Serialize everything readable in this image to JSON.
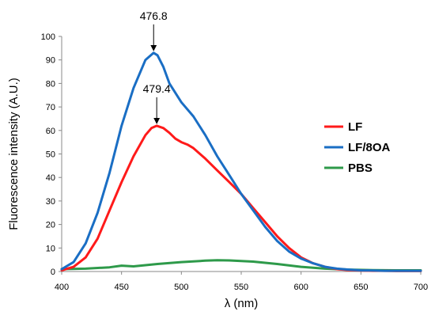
{
  "chart_data": {
    "type": "line",
    "xlabel": "λ (nm)",
    "ylabel": "Fluorescence intensity (A.U.)",
    "xlim": [
      400,
      700
    ],
    "ylim": [
      0,
      100
    ],
    "xticks": [
      400,
      450,
      500,
      550,
      600,
      650,
      700
    ],
    "yticks": [
      0,
      10,
      20,
      30,
      40,
      50,
      60,
      70,
      80,
      90,
      100
    ],
    "grid": false,
    "legend_position": "right",
    "series": [
      {
        "name": "LF",
        "color": "#ff1a1a",
        "x": [
          400,
          410,
          420,
          430,
          440,
          450,
          460,
          470,
          475,
          479.4,
          485,
          490,
          495,
          500,
          505,
          510,
          520,
          530,
          540,
          550,
          560,
          570,
          580,
          590,
          600,
          610,
          620,
          630,
          640,
          650,
          660,
          670,
          680,
          690,
          700
        ],
        "y": [
          0.5,
          2,
          6,
          14,
          26,
          38,
          49,
          58,
          61,
          62,
          61,
          59,
          56.5,
          55,
          54,
          52.5,
          48,
          43,
          38,
          33,
          27,
          21,
          15,
          10,
          6,
          3.5,
          2,
          1,
          0.6,
          0.4,
          0.3,
          0.3,
          0.2,
          0.2,
          0.2
        ]
      },
      {
        "name": "LF/8OA",
        "color": "#1a6ec4",
        "x": [
          400,
          410,
          420,
          430,
          440,
          450,
          460,
          470,
          476.8,
          480,
          485,
          490,
          500,
          510,
          520,
          530,
          540,
          550,
          560,
          570,
          580,
          590,
          600,
          610,
          620,
          630,
          640,
          650,
          660,
          670,
          680,
          690,
          700
        ],
        "y": [
          1,
          4,
          12,
          25,
          42,
          62,
          78,
          90,
          93,
          92,
          87,
          80,
          72,
          66,
          58,
          49,
          41,
          33,
          26,
          19,
          13,
          8.5,
          5.5,
          3.5,
          2,
          1.2,
          0.8,
          0.5,
          0.4,
          0.3,
          0.3,
          0.3,
          0.3
        ]
      },
      {
        "name": "PBS",
        "color": "#2e9a4a",
        "x": [
          400,
          420,
          440,
          450,
          460,
          480,
          500,
          520,
          530,
          540,
          560,
          580,
          600,
          620,
          640,
          660,
          680,
          700
        ],
        "y": [
          1,
          1.2,
          1.8,
          2.5,
          2.2,
          3.2,
          4,
          4.6,
          4.8,
          4.7,
          4.2,
          3.2,
          2,
          1.2,
          0.8,
          0.6,
          0.5,
          0.5
        ]
      }
    ],
    "annotations": [
      {
        "text": "476.8",
        "x": 476.8,
        "y": 93
      },
      {
        "text": "479.4",
        "x": 479.4,
        "y": 62
      }
    ]
  }
}
